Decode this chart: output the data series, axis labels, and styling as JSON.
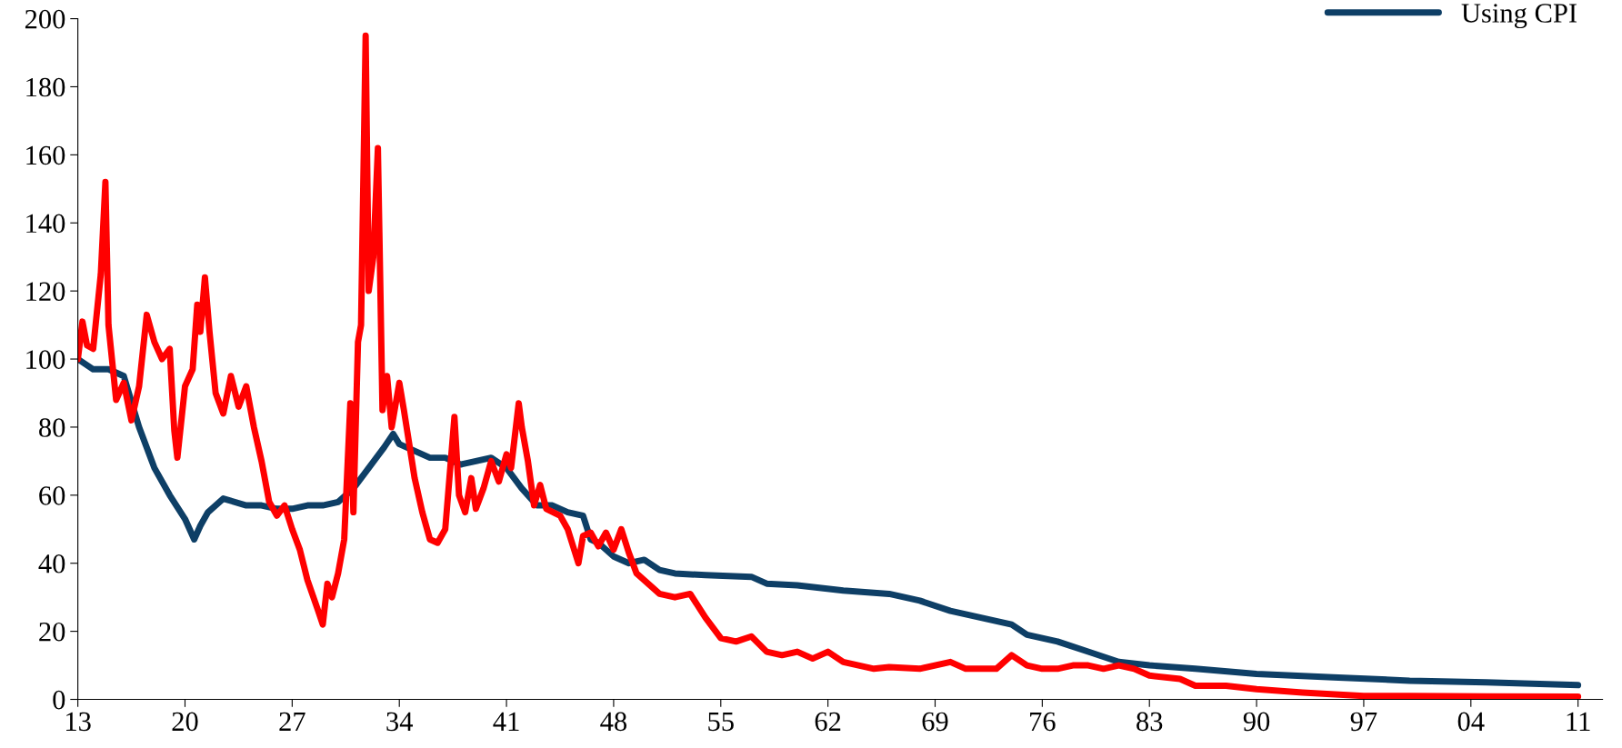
{
  "chart_data": {
    "type": "line",
    "xlim": [
      1913,
      2012.6
    ],
    "ylim": [
      0,
      200
    ],
    "xticks": [
      {
        "value": 1913,
        "label": "13"
      },
      {
        "value": 1920,
        "label": "20"
      },
      {
        "value": 1927,
        "label": "27"
      },
      {
        "value": 1934,
        "label": "34"
      },
      {
        "value": 1941,
        "label": "41"
      },
      {
        "value": 1948,
        "label": "48"
      },
      {
        "value": 1955,
        "label": "55"
      },
      {
        "value": 1962,
        "label": "62"
      },
      {
        "value": 1969,
        "label": "69"
      },
      {
        "value": 1976,
        "label": "76"
      },
      {
        "value": 1983,
        "label": "83"
      },
      {
        "value": 1990,
        "label": "90"
      },
      {
        "value": 1997,
        "label": "97"
      },
      {
        "value": 2004,
        "label": "04"
      },
      {
        "value": 2011,
        "label": "11"
      }
    ],
    "yticks": [
      0,
      20,
      40,
      60,
      80,
      100,
      120,
      140,
      160,
      180,
      200
    ],
    "grid": false,
    "legend": "top right",
    "marker": "none",
    "line_style": "solid",
    "series": [
      {
        "name": "Using CPI",
        "color": "#0e3f66",
        "x": [
          1913,
          1914,
          1915,
          1916,
          1917,
          1918,
          1919,
          1920,
          1920.6,
          1921,
          1921.5,
          1922,
          1922.5,
          1924,
          1925,
          1926,
          1927,
          1928,
          1929,
          1930,
          1931,
          1932,
          1933,
          1933.6,
          1934,
          1935,
          1936,
          1937,
          1938,
          1939,
          1940,
          1941,
          1942,
          1943,
          1944,
          1945,
          1946,
          1946.5,
          1947,
          1948,
          1949,
          1950,
          1951,
          1952,
          1954,
          1957,
          1958,
          1960,
          1963,
          1966,
          1968,
          1970,
          1972,
          1974,
          1975,
          1977,
          1979,
          1981,
          1983,
          1986,
          1990,
          1995,
          2000,
          2005,
          2011
        ],
        "values": [
          100,
          97,
          97,
          95,
          80,
          68,
          60,
          53,
          47,
          51,
          55,
          57,
          59,
          57,
          57,
          56,
          56,
          57,
          57,
          58,
          62,
          68,
          74,
          78,
          75,
          73,
          71,
          71,
          69,
          70,
          71,
          68,
          62,
          57,
          57,
          55,
          54,
          47,
          46,
          42,
          40,
          41,
          38,
          37,
          36.5,
          36,
          34,
          33.5,
          32,
          31,
          29,
          26,
          24,
          22,
          19,
          17,
          14,
          11,
          10,
          9,
          7.5,
          6.5,
          5.5,
          5,
          4.2
        ]
      },
      {
        "color": "#ff0000",
        "x": [
          1913,
          1913.3,
          1913.6,
          1914,
          1914.5,
          1914.8,
          1915,
          1915.5,
          1916,
          1916.5,
          1917,
          1917.5,
          1918,
          1918.5,
          1919,
          1919.3,
          1919.5,
          1920,
          1920.5,
          1920.8,
          1921,
          1921.3,
          1921.6,
          1922,
          1922.5,
          1923,
          1923.5,
          1924,
          1924.5,
          1925,
          1925.5,
          1926,
          1926.5,
          1927,
          1927.5,
          1928,
          1928.7,
          1929,
          1929.3,
          1929.6,
          1930,
          1930.4,
          1930.8,
          1931,
          1931.3,
          1931.5,
          1931.8,
          1932,
          1932.3,
          1932.6,
          1932.9,
          1933.2,
          1933.5,
          1934,
          1934.3,
          1935,
          1935.5,
          1936,
          1936.5,
          1937,
          1937.6,
          1937.9,
          1938.3,
          1938.7,
          1939,
          1939.5,
          1940,
          1940.5,
          1941,
          1941.3,
          1941.8,
          1942,
          1942.4,
          1942.8,
          1943.2,
          1943.6,
          1944.5,
          1945,
          1945.7,
          1946,
          1946.5,
          1947,
          1947.5,
          1948,
          1948.5,
          1949,
          1949.5,
          1950,
          1951,
          1952,
          1953,
          1954,
          1955,
          1956,
          1957,
          1958,
          1959,
          1960,
          1961,
          1962,
          1963,
          1964,
          1965,
          1966,
          1968,
          1970,
          1971,
          1972,
          1973,
          1974,
          1975,
          1976,
          1977,
          1978,
          1979,
          1980,
          1981,
          1982,
          1983,
          1985,
          1986,
          1988,
          1990,
          1993,
          1997,
          2000,
          2005,
          2011
        ],
        "values": [
          100,
          111,
          104,
          103,
          125,
          152,
          110,
          88,
          93,
          82,
          92,
          113,
          105,
          100,
          103,
          79,
          71,
          92,
          97,
          116,
          108,
          124,
          108,
          90,
          84,
          95,
          86,
          92,
          80,
          70,
          58,
          54,
          57,
          50,
          44,
          35,
          26,
          22,
          34,
          30,
          37,
          47,
          87,
          55,
          105,
          110,
          195,
          120,
          130,
          162,
          85,
          95,
          80,
          93,
          85,
          65,
          55,
          47,
          46,
          50,
          83,
          60,
          55,
          65,
          56,
          62,
          70,
          64,
          72,
          68,
          87,
          80,
          70,
          57,
          63,
          56,
          54,
          50,
          40,
          48,
          49,
          45,
          49,
          44,
          50,
          43,
          37,
          35,
          31,
          30,
          31,
          24,
          18,
          17,
          18.5,
          14,
          13,
          14,
          12,
          14,
          11,
          10,
          9,
          9.5,
          9,
          11,
          9,
          9,
          9,
          13,
          10,
          9,
          9,
          10,
          10,
          9,
          10,
          9,
          7,
          6,
          4,
          4,
          3,
          2,
          1,
          1,
          0.9,
          0.8
        ]
      }
    ]
  }
}
